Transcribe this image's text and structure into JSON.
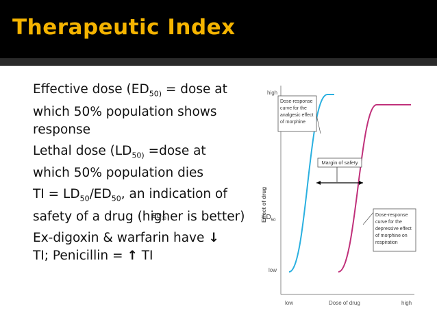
{
  "slide": {
    "title": "Therapeutic Index",
    "bullets": [
      {
        "a": "Effective dose (ED",
        "sub": "50)",
        "b": " = dose at which 50% population shows response"
      },
      {
        "a": "Lethal dose (LD",
        "sub": "50)",
        "b": " =dose at which 50% population dies"
      },
      {
        "a": "TI = LD",
        "sub1": "50",
        "m": "/ED",
        "sub2": "50",
        "b": ", an indication of safety of a drug (higher is better)"
      },
      {
        "a": "Ex-digoxin & warfarin have ",
        "b": "TI; Penicillin = ",
        "c": " TI"
      }
    ],
    "overlays": {
      "ed": "ED",
      "ed_sub": "50",
      "ld": "LD",
      "ld_sub": "50"
    }
  },
  "figure": {
    "y_axis_label": "Effect of drug",
    "y_high": "high",
    "y_low": "low",
    "x_axis_label": "Dose of drug",
    "x_low": "low",
    "x_high": "high",
    "blue_curve_label": [
      "Dose-response",
      "curve for the",
      "analgesic effect",
      "of morphine"
    ],
    "pink_curve_label": [
      "Dose-response",
      "curve for the",
      "depressive effect",
      "of morphine on",
      "respiration"
    ],
    "margin_label": "Margin of safety",
    "blue_color": "#2ab0e0",
    "pink_color": "#c0307a"
  },
  "colors": {
    "title": "#f5b400",
    "background": "#ffffff",
    "band": "#000000"
  },
  "icons": [
    "down-arrow-icon",
    "up-arrow-icon"
  ]
}
